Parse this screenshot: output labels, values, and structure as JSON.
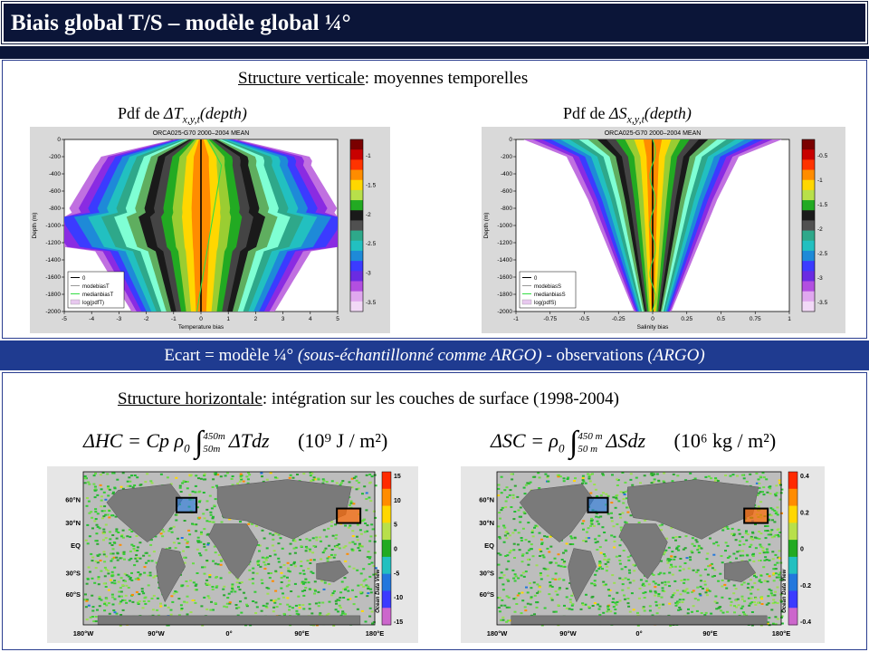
{
  "slide_title": "Biais global T/S – modèle global ¼°",
  "section_vertical": {
    "underlined": "Structure verticale",
    "rest": ": moyennes temporelles"
  },
  "banner": {
    "a": "Ecart = modèle ¼° ",
    "b": "(sous-échantillonné comme ARGO)",
    "c": " - observations ",
    "d": "(ARGO)"
  },
  "section_horizontal": {
    "underlined": "Structure horizontale",
    "rest": ": intégration sur les couches de surface (1998-2004)"
  },
  "pdf_labels": {
    "t": {
      "prefix": "Pdf de ",
      "formula": "ΔT",
      "sub": "x,y,t",
      "suffix": "(depth)"
    },
    "s": {
      "prefix": "Pdf de ",
      "formula": "ΔS",
      "sub": "x,y,t",
      "suffix": "(depth)"
    }
  },
  "formulas": {
    "hc": {
      "lhs": "ΔHC = Cp ρ",
      "sub0": "0",
      "int_low": "50m",
      "int_high": "450m",
      "integrand": "ΔTdz",
      "unit": "(10⁹ J / m²)"
    },
    "sc": {
      "lhs": "ΔSC = ρ",
      "sub0": "0",
      "int_low": "50 m",
      "int_high": "450 m",
      "integrand": "ΔSdz",
      "unit": "(10⁶ kg / m²)"
    }
  },
  "chart_data": [
    {
      "type": "heatmap",
      "title": "ORCA025-G70 2000–2004 MEAN",
      "xlabel": "Temperature bias",
      "ylabel": "Depth (m)",
      "xlim": [
        -5,
        5
      ],
      "ylim": [
        0,
        2000
      ],
      "xticks": [
        "-5",
        "-4",
        "-3",
        "-2",
        "-1",
        "0",
        "1",
        "2",
        "3",
        "4",
        "5"
      ],
      "yticks": [
        "0",
        "-200",
        "-400",
        "-600",
        "-800",
        "-1000",
        "-1200",
        "-1400",
        "-1600",
        "-1800",
        "-2000"
      ],
      "colorbar_ticks": [
        "-1",
        "-1.5",
        "-2",
        "-2.5",
        "-3",
        "-3.5"
      ],
      "legend": [
        "0",
        "modebiasT",
        "medianbiasT",
        "log(pdfT)"
      ],
      "legend_position": "bottom-left"
    },
    {
      "type": "heatmap",
      "title": "ORCA025-G70 2000–2004 MEAN",
      "xlabel": "Salinity bias",
      "ylabel": "Depth (m)",
      "xlim": [
        -1,
        1
      ],
      "ylim": [
        0,
        2000
      ],
      "xticks": [
        "-1",
        "-0.75",
        "-0.5",
        "-0.25",
        "0",
        "0.25",
        "0.5",
        "0.75",
        "1"
      ],
      "yticks": [
        "0",
        "-200",
        "-400",
        "-600",
        "-800",
        "-1000",
        "-1200",
        "-1400",
        "-1600",
        "-1800",
        "-2000"
      ],
      "colorbar_ticks": [
        "-0.5",
        "-1",
        "-1.5",
        "-2",
        "-2.5",
        "-3",
        "-3.5"
      ],
      "legend": [
        "0",
        "modebiasS",
        "medianbiasS",
        "log(pdfS)"
      ],
      "legend_position": "bottom-left"
    },
    {
      "type": "heatmap",
      "xticks": [
        "180°W",
        "90°W",
        "0°",
        "90°E",
        "180°E"
      ],
      "yticks": [
        "60°N",
        "30°N",
        "EQ",
        "30°S",
        "60°S"
      ],
      "colorbar_ticks": [
        "15",
        "10",
        "5",
        "0",
        "-5",
        "-10",
        "-15"
      ],
      "colorbar_label": "Ocean Data View"
    },
    {
      "type": "heatmap",
      "xticks": [
        "180°W",
        "90°W",
        "0°",
        "90°E",
        "180°E"
      ],
      "yticks": [
        "60°N",
        "30°N",
        "EQ",
        "30°S",
        "60°S"
      ],
      "colorbar_ticks": [
        "0.4",
        "0.2",
        "0",
        "-0.2",
        "-0.4"
      ],
      "colorbar_label": "Ocean Data View"
    }
  ]
}
